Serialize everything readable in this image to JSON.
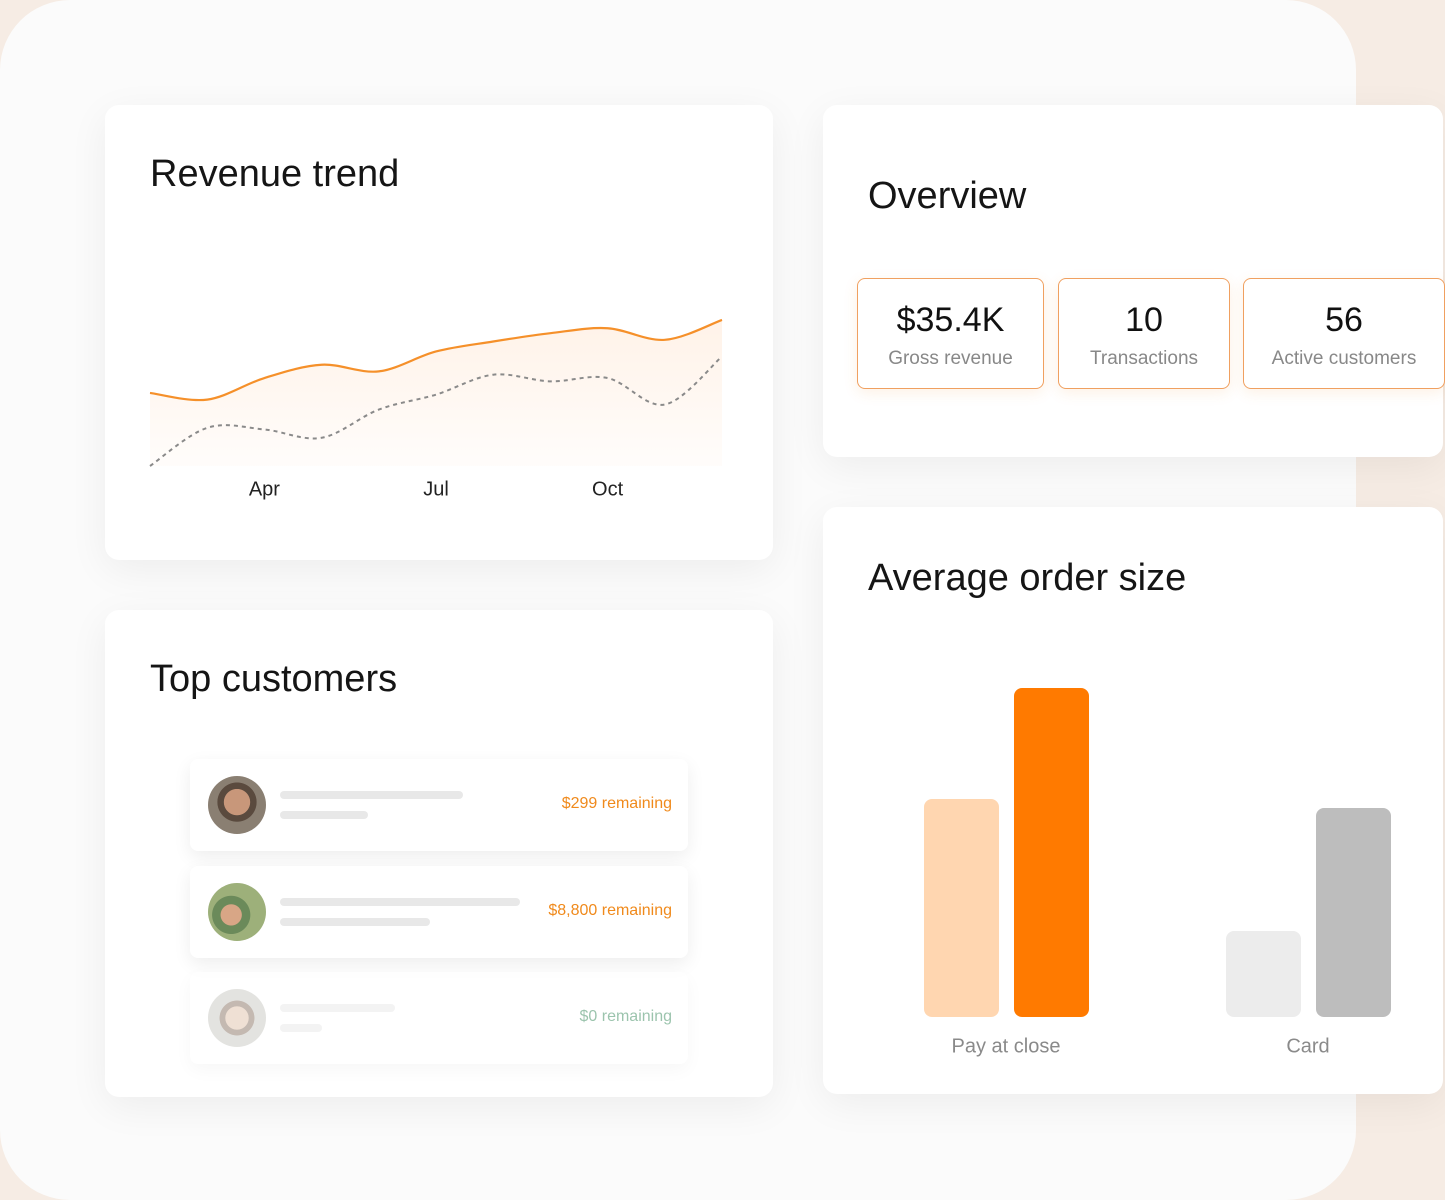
{
  "chart_data": [
    {
      "type": "line",
      "title": "Revenue trend",
      "categories": [
        null,
        null,
        "Apr",
        null,
        null,
        "Jul",
        null,
        null,
        "Oct",
        null,
        null
      ],
      "series": [
        {
          "color": "#f5902a",
          "values": [
            44,
            40,
            53,
            61,
            57,
            69,
            75,
            80,
            83,
            76,
            88
          ],
          "area": true
        },
        {
          "color": "#8a8a8a",
          "values": [
            0,
            23,
            22,
            17,
            34,
            43,
            55,
            51,
            53,
            37,
            66
          ],
          "dashed": true
        }
      ],
      "ylim": [
        0,
        100
      ]
    },
    {
      "type": "bar",
      "title": "Average order size",
      "categories": [
        "Pay at close",
        "Card"
      ],
      "series": [
        {
          "colors": [
            "#ffd6b0",
            "#ececec"
          ],
          "values": [
            218,
            86
          ]
        },
        {
          "colors": [
            "#ff7a00",
            "#bdbdbd"
          ],
          "values": [
            329,
            209
          ]
        }
      ],
      "ylim": [
        0,
        350
      ]
    }
  ],
  "overview": {
    "title": "Overview",
    "stats": [
      {
        "value": "$35.4K",
        "label": "Gross revenue"
      },
      {
        "value": "10",
        "label": "Transactions"
      },
      {
        "value": "56",
        "label": "Active customers"
      }
    ]
  },
  "top_customers": {
    "title": "Top customers",
    "rows": [
      {
        "status": "$299 remaining"
      },
      {
        "status": "$8,800 remaining"
      },
      {
        "status": "$0 remaining"
      }
    ]
  }
}
